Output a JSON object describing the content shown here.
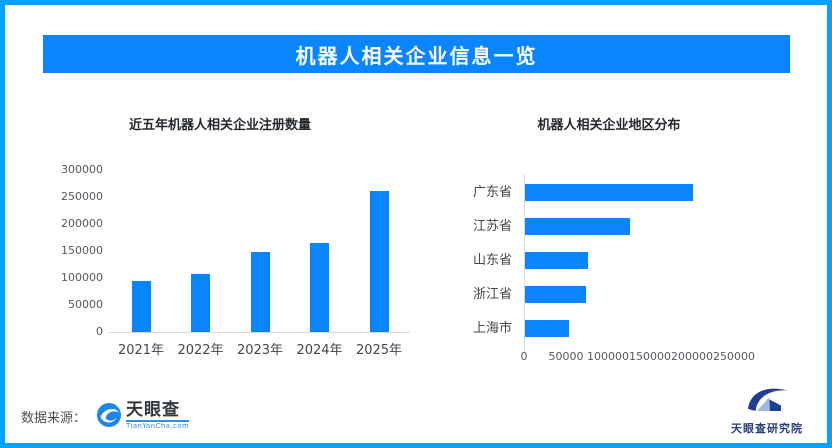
{
  "frame": {
    "border_color": "#00A2FF"
  },
  "header": {
    "title": "机器人相关企业信息一览",
    "bg_color": "#0885FF",
    "text_color": "#FFFFFF"
  },
  "chart_data": [
    {
      "type": "bar",
      "orientation": "vertical",
      "title": "近五年机器人相关企业注册数量",
      "categories": [
        "2021年",
        "2022年",
        "2023年",
        "2024年",
        "2025年"
      ],
      "values": [
        95000,
        108000,
        148000,
        164000,
        262000
      ],
      "xlabel": "",
      "ylabel": "",
      "ylim": [
        0,
        300000
      ],
      "yticks": [
        "0",
        "50000",
        "100000",
        "150000",
        "200000",
        "250000",
        "300000"
      ],
      "grid": false,
      "legend": false,
      "bar_color": "#0885FF"
    },
    {
      "type": "bar",
      "orientation": "horizontal",
      "title": "机器人相关企业地区分布",
      "categories": [
        "广东省",
        "江苏省",
        "山东省",
        "浙江省",
        "上海市"
      ],
      "values": [
        200000,
        125000,
        75000,
        73000,
        52000
      ],
      "xlabel": "",
      "ylabel": "",
      "xlim": [
        0,
        250000
      ],
      "xticks": [
        "0",
        "50000",
        "100000",
        "150000",
        "200000",
        "250000"
      ],
      "grid": false,
      "legend": false,
      "bar_color": "#0885FF"
    }
  ],
  "footer": {
    "source_label": "数据来源：",
    "source_logo": {
      "name": "天眼查",
      "caption": "TianYanCha.com",
      "accent_color": "#2F8FE8"
    },
    "org_logo": {
      "name": "天眼查研究院",
      "accent_color": "#1F3E94"
    }
  }
}
